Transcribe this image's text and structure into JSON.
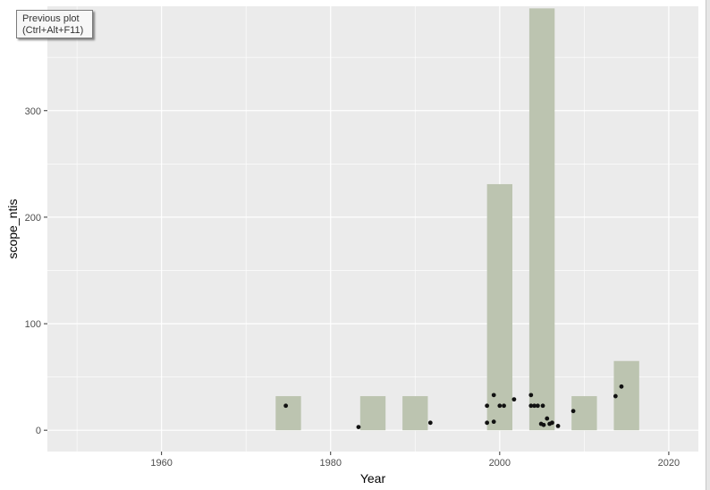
{
  "prev_plot": {
    "line1": "Previous plot",
    "line2": "(Ctrl+Alt+F11)"
  },
  "chart_data": {
    "type": "bar",
    "xlabel": "Year",
    "ylabel": "scope_ntis",
    "xlim": [
      1946.5,
      2023.5
    ],
    "ylim": [
      -20,
      398
    ],
    "x_ticks": [
      1960,
      1980,
      2000,
      2020
    ],
    "x_tick_labels": [
      "1960",
      "1980",
      "2000",
      "2020"
    ],
    "y_ticks": [
      0,
      100,
      200,
      300
    ],
    "y_tick_labels": [
      "0",
      "100",
      "200",
      "300"
    ],
    "grid": true,
    "colors": {
      "panel": "#ebebeb",
      "grid": "#ffffff",
      "bar": "#bcc4b0",
      "point": "#111111"
    },
    "bars": [
      {
        "x": 1975,
        "value": 32
      },
      {
        "x": 1985,
        "value": 32
      },
      {
        "x": 1990,
        "value": 32
      },
      {
        "x": 2000,
        "value": 231
      },
      {
        "x": 2005,
        "value": 396
      },
      {
        "x": 2010,
        "value": 32
      },
      {
        "x": 2015,
        "value": 65
      }
    ],
    "bar_width_years": 3,
    "points": [
      {
        "x": 1974.7,
        "y": 23
      },
      {
        "x": 1983.3,
        "y": 3
      },
      {
        "x": 1991.8,
        "y": 7
      },
      {
        "x": 1998.5,
        "y": 23
      },
      {
        "x": 1998.5,
        "y": 7
      },
      {
        "x": 1999.3,
        "y": 33
      },
      {
        "x": 1999.3,
        "y": 8
      },
      {
        "x": 2000.0,
        "y": 23
      },
      {
        "x": 2000.5,
        "y": 23
      },
      {
        "x": 2001.7,
        "y": 29
      },
      {
        "x": 2003.7,
        "y": 33
      },
      {
        "x": 2003.7,
        "y": 23
      },
      {
        "x": 2004.1,
        "y": 23
      },
      {
        "x": 2004.5,
        "y": 23
      },
      {
        "x": 2004.9,
        "y": 6
      },
      {
        "x": 2005.1,
        "y": 23
      },
      {
        "x": 2005.2,
        "y": 5
      },
      {
        "x": 2005.6,
        "y": 11
      },
      {
        "x": 2005.9,
        "y": 6
      },
      {
        "x": 2006.2,
        "y": 7
      },
      {
        "x": 2006.9,
        "y": 4
      },
      {
        "x": 2008.7,
        "y": 18
      },
      {
        "x": 2013.7,
        "y": 32
      },
      {
        "x": 2014.4,
        "y": 41
      }
    ]
  }
}
